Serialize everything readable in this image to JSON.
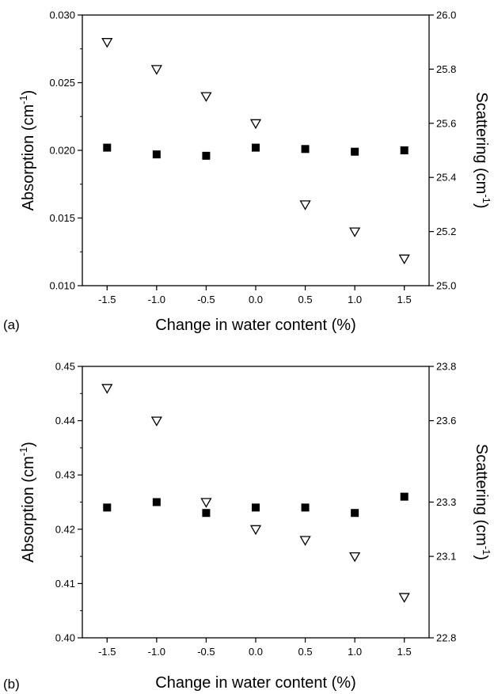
{
  "chart_data": [
    {
      "type": "scatter",
      "panel_label": "(a)",
      "xlabel": "Change in water content (%)",
      "ylabel_left": "Absorption (cm",
      "ylabel_left_sup": "-1",
      "ylabel_right": "Scattering (cm",
      "ylabel_right_sup": "-1",
      "ylabel_close": ")",
      "xlim": [
        -1.75,
        1.75
      ],
      "ylim_left": [
        0.01,
        0.03
      ],
      "ylim_right": [
        25.0,
        26.0
      ],
      "xticks": [
        -1.5,
        -1.0,
        -0.5,
        0.0,
        0.5,
        1.0,
        1.5
      ],
      "xtick_labels": [
        "-1.5",
        "-1.0",
        "-0.5",
        "0.0",
        "0.5",
        "1.0",
        "1.5"
      ],
      "yticks_left": [
        0.01,
        0.015,
        0.02,
        0.025,
        0.03
      ],
      "ytick_labels_left": [
        "0.010",
        "0.015",
        "0.020",
        "0.025",
        "0.030"
      ],
      "yticks_right": [
        25.0,
        25.2,
        25.4,
        25.6,
        25.8,
        26.0
      ],
      "ytick_labels_right": [
        "25.0",
        "25.2",
        "25.4",
        "25.6",
        "25.8",
        "26.0"
      ],
      "grid": false,
      "series": [
        {
          "marker": "filled-square",
          "axis": "left",
          "x": [
            -1.5,
            -1.0,
            -0.5,
            0.0,
            0.5,
            1.0,
            1.5
          ],
          "y": [
            0.0202,
            0.0197,
            0.0196,
            0.0202,
            0.0201,
            0.0199,
            0.02
          ]
        },
        {
          "marker": "open-triangle-down",
          "axis": "right",
          "x": [
            -1.5,
            -1.0,
            -0.5,
            0.0,
            0.5,
            1.0,
            1.5
          ],
          "y": [
            25.9,
            25.8,
            25.7,
            25.6,
            25.3,
            25.2,
            25.1
          ]
        }
      ]
    },
    {
      "type": "scatter",
      "panel_label": "(b)",
      "xlabel": "Change in water content (%)",
      "ylabel_left": "Absorption (cm",
      "ylabel_left_sup": "-1",
      "ylabel_right": "Scattering (cm",
      "ylabel_right_sup": "-1",
      "ylabel_close": ")",
      "xlim": [
        -1.75,
        1.75
      ],
      "ylim_left": [
        0.4,
        0.45
      ],
      "ylim_right": [
        22.8,
        23.8
      ],
      "xticks": [
        -1.5,
        -1.0,
        -0.5,
        0.0,
        0.5,
        1.0,
        1.5
      ],
      "xtick_labels": [
        "-1.5",
        "-1.0",
        "-0.5",
        "0.0",
        "0.5",
        "1.0",
        "1.5"
      ],
      "yticks_left": [
        0.4,
        0.41,
        0.42,
        0.43,
        0.44,
        0.45
      ],
      "ytick_labels_left": [
        "0.40",
        "0.41",
        "0.42",
        "0.43",
        "0.44",
        "0.45"
      ],
      "yticks_right": [
        22.8,
        23.1,
        23.3,
        23.6,
        23.8
      ],
      "ytick_labels_right": [
        "22.8",
        "23.1",
        "23.3",
        "23.6",
        "23.8"
      ],
      "grid": false,
      "series": [
        {
          "marker": "filled-square",
          "axis": "left",
          "x": [
            -1.5,
            -1.0,
            -0.5,
            0.0,
            0.5,
            1.0,
            1.5
          ],
          "y": [
            0.424,
            0.425,
            0.423,
            0.424,
            0.424,
            0.423,
            0.426
          ]
        },
        {
          "marker": "open-triangle-down",
          "axis": "right",
          "x": [
            -1.5,
            -1.0,
            -0.5,
            0.0,
            0.5,
            1.0,
            1.5
          ],
          "y": [
            23.72,
            23.6,
            23.3,
            23.2,
            23.16,
            23.1,
            22.95
          ]
        }
      ]
    }
  ]
}
